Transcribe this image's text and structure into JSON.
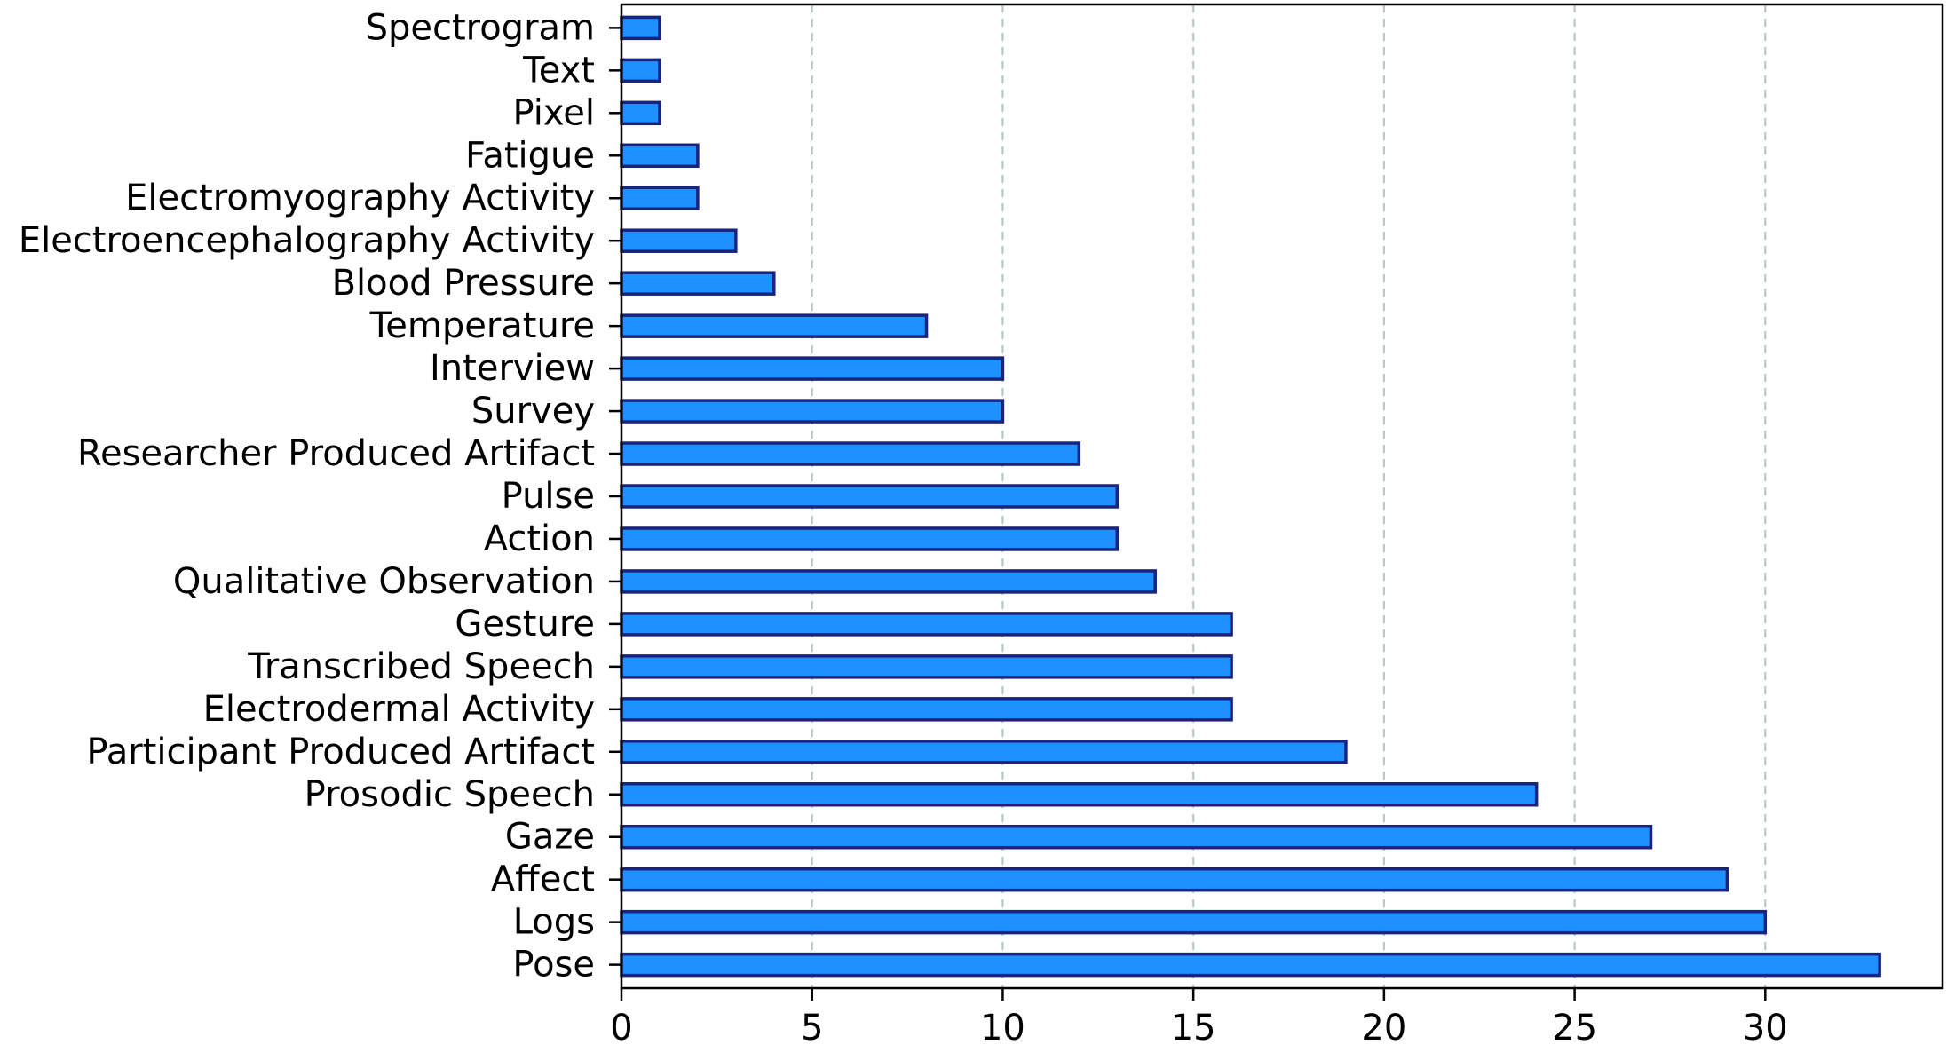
{
  "chart_data": {
    "type": "bar",
    "orientation": "horizontal",
    "categories": [
      "Pose",
      "Logs",
      "Affect",
      "Gaze",
      "Prosodic Speech",
      "Participant Produced Artifact",
      "Electrodermal Activity",
      "Transcribed Speech",
      "Gesture",
      "Qualitative Observation",
      "Action",
      "Pulse",
      "Researcher Produced Artifact",
      "Survey",
      "Interview",
      "Temperature",
      "Blood Pressure",
      "Electroencephalography Activity",
      "Electromyography Activity",
      "Fatigue",
      "Pixel",
      "Text",
      "Spectrogram"
    ],
    "values": [
      33,
      30,
      29,
      27,
      24,
      19,
      16,
      16,
      16,
      14,
      13,
      13,
      12,
      10,
      10,
      8,
      4,
      3,
      2,
      2,
      1,
      1,
      1
    ],
    "xticks": [
      0,
      5,
      10,
      15,
      20,
      25,
      30
    ],
    "xlim": [
      0,
      34.65
    ],
    "title": "",
    "xlabel": "",
    "ylabel": "",
    "grid": "x-axis dashed",
    "legend": "none",
    "bar_color": "#1e90ff",
    "bar_edge_color": "#1a237e",
    "grid_color": "#b0c4c4"
  }
}
